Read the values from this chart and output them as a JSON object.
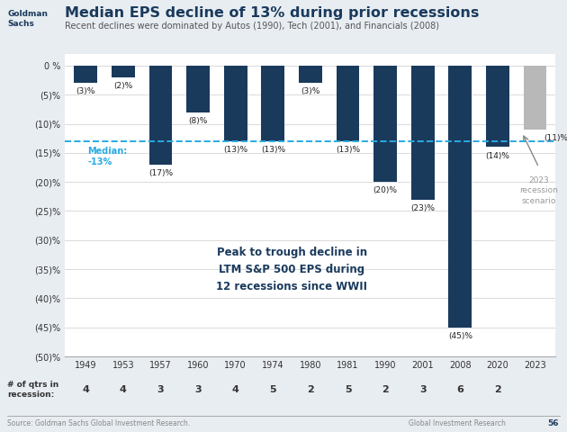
{
  "title": "Median EPS decline of 13% during prior recessions",
  "subtitle": "Recent declines were dominated by Autos (1990), Tech (2001), and Financials (2008)",
  "years": [
    "1949",
    "1953",
    "1957",
    "1960",
    "1970",
    "1974",
    "1980",
    "1981",
    "1990",
    "2001",
    "2008",
    "2020",
    "2023"
  ],
  "values": [
    -3,
    -2,
    -17,
    -8,
    -13,
    -13,
    -3,
    -13,
    -20,
    -23,
    -45,
    -14,
    -11
  ],
  "bar_colors": [
    "#1a3a5c",
    "#1a3a5c",
    "#1a3a5c",
    "#1a3a5c",
    "#1a3a5c",
    "#1a3a5c",
    "#1a3a5c",
    "#1a3a5c",
    "#1a3a5c",
    "#1a3a5c",
    "#1a3a5c",
    "#1a3a5c",
    "#b8b8b8"
  ],
  "labels": [
    "(3)%",
    "(2)%",
    "(17)%",
    "(8)%",
    "(13)%",
    "(13)%",
    "(3)%",
    "(13)%",
    "(20)%",
    "(23)%",
    "(45)%",
    "(14)%",
    "(11)%"
  ],
  "qtrs": [
    "4",
    "4",
    "3",
    "3",
    "4",
    "5",
    "2",
    "5",
    "2",
    "3",
    "6",
    "2",
    ""
  ],
  "median_line": -13,
  "median_label": "Median:\n-13%",
  "annotation_text": "Peak to trough decline in\nLTM S&P 500 EPS during\n12 recessions since WWII",
  "scenario_text": "2023\nrecession\nscenario",
  "ylim_min": -50,
  "ylim_max": 2,
  "yticks": [
    0,
    -5,
    -10,
    -15,
    -20,
    -25,
    -30,
    -35,
    -40,
    -45,
    -50
  ],
  "ytick_labels": [
    "0 %",
    "(5)%",
    "(10)%",
    "(15)%",
    "(20)%",
    "(25)%",
    "(30)%",
    "(35)%",
    "(40)%",
    "(45)%",
    "(50)%"
  ],
  "background_color": "#e8edf2",
  "bar_area_color": "#ffffff",
  "title_color": "#1a3a5c",
  "subtitle_color": "#555555",
  "median_line_color": "#29abe2",
  "logo_color": "#1a3a5c",
  "footer_source": "Source: Goldman Sachs Global Investment Research.",
  "footer_right": "Global Investment Research",
  "footer_page": "56"
}
